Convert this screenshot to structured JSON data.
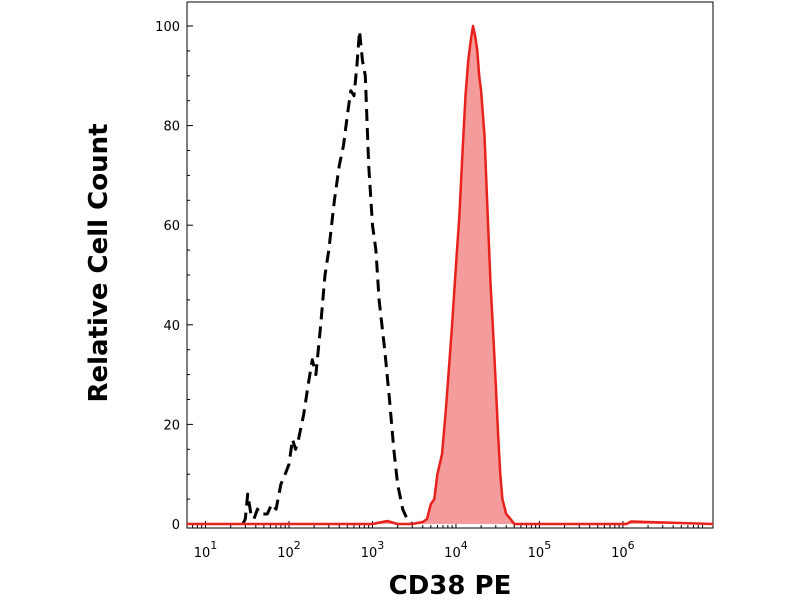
{
  "chart_data": {
    "type": "area",
    "xlabel": "CD38 PE",
    "ylabel": "Relative Cell Count",
    "x_scale": "log",
    "xlim": [
      6,
      12000000
    ],
    "ylim": [
      0,
      100
    ],
    "grid": false,
    "x_ticks": [
      {
        "value": 10,
        "base": "10",
        "exp": "1"
      },
      {
        "value": 100,
        "base": "10",
        "exp": "2"
      },
      {
        "value": 1000,
        "base": "10",
        "exp": "3"
      },
      {
        "value": 10000,
        "base": "10",
        "exp": "4"
      },
      {
        "value": 100000,
        "base": "10",
        "exp": "5"
      },
      {
        "value": 1000000,
        "base": "10",
        "exp": "6"
      }
    ],
    "y_ticks": [
      0,
      20,
      40,
      60,
      80,
      100
    ],
    "series": [
      {
        "style": "dashed",
        "color": "#000000",
        "points": [
          [
            28,
            0
          ],
          [
            30,
            1
          ],
          [
            32,
            6
          ],
          [
            35,
            2
          ],
          [
            38,
            1
          ],
          [
            42,
            3
          ],
          [
            45,
            2
          ],
          [
            55,
            2
          ],
          [
            62,
            4
          ],
          [
            70,
            3
          ],
          [
            80,
            8
          ],
          [
            90,
            10
          ],
          [
            100,
            12
          ],
          [
            110,
            17
          ],
          [
            120,
            15
          ],
          [
            130,
            17
          ],
          [
            150,
            22
          ],
          [
            170,
            28
          ],
          [
            190,
            33
          ],
          [
            210,
            30
          ],
          [
            240,
            40
          ],
          [
            270,
            50
          ],
          [
            300,
            55
          ],
          [
            350,
            65
          ],
          [
            400,
            72
          ],
          [
            450,
            76
          ],
          [
            500,
            82
          ],
          [
            550,
            87
          ],
          [
            600,
            86
          ],
          [
            650,
            92
          ],
          [
            700,
            99
          ],
          [
            760,
            93
          ],
          [
            820,
            90
          ],
          [
            900,
            72
          ],
          [
            1000,
            60
          ],
          [
            1100,
            55
          ],
          [
            1200,
            45
          ],
          [
            1400,
            35
          ],
          [
            1600,
            25
          ],
          [
            1800,
            15
          ],
          [
            2000,
            8
          ],
          [
            2300,
            3
          ],
          [
            2600,
            1
          ],
          [
            3000,
            0
          ]
        ]
      },
      {
        "style": "filled",
        "color": "#e8211b",
        "fill": "#f49b9b",
        "points": [
          [
            6,
            0
          ],
          [
            1000,
            0
          ],
          [
            1500,
            0.6
          ],
          [
            2000,
            0
          ],
          [
            3000,
            0
          ],
          [
            4000,
            0.4
          ],
          [
            4500,
            1
          ],
          [
            5000,
            4
          ],
          [
            5500,
            5
          ],
          [
            6000,
            10
          ],
          [
            6800,
            14
          ],
          [
            7500,
            22
          ],
          [
            8300,
            32
          ],
          [
            9000,
            40
          ],
          [
            10000,
            52
          ],
          [
            11000,
            62
          ],
          [
            12000,
            75
          ],
          [
            13000,
            86
          ],
          [
            14000,
            93
          ],
          [
            15000,
            97
          ],
          [
            16000,
            100
          ],
          [
            17000,
            98
          ],
          [
            18000,
            95
          ],
          [
            19000,
            90
          ],
          [
            20000,
            87
          ],
          [
            22000,
            78
          ],
          [
            24000,
            62
          ],
          [
            26000,
            48
          ],
          [
            28000,
            38
          ],
          [
            30000,
            28
          ],
          [
            32000,
            18
          ],
          [
            34000,
            10
          ],
          [
            36000,
            5
          ],
          [
            40000,
            2
          ],
          [
            45000,
            1
          ],
          [
            50000,
            0
          ],
          [
            1100000,
            0
          ],
          [
            1250000,
            0.5
          ],
          [
            12000000,
            0
          ]
        ]
      }
    ]
  }
}
